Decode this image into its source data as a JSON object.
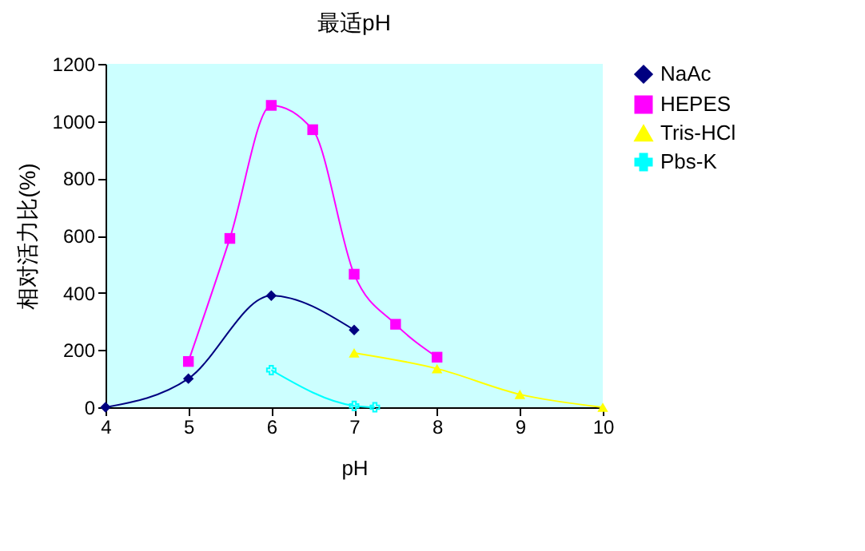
{
  "chart_data": {
    "type": "line",
    "title": "最适pH",
    "xlabel": "pH",
    "ylabel": "相对活力比(%)",
    "xlim": [
      4,
      10
    ],
    "xticks": [
      4,
      5,
      6,
      7,
      8,
      9,
      10
    ],
    "ylim": [
      0,
      1200
    ],
    "yticks": [
      0,
      200,
      400,
      600,
      800,
      1000,
      1200
    ],
    "grid": false,
    "legend": "right",
    "series": [
      {
        "name": "NaAc",
        "color": "#000080",
        "marker": "diamond",
        "x": [
          4,
          5,
          6,
          7
        ],
        "values": [
          0,
          100,
          390,
          270
        ]
      },
      {
        "name": "HEPES",
        "color": "#ff00ff",
        "marker": "square",
        "x": [
          5,
          5.5,
          6,
          6.5,
          7,
          7.5,
          8
        ],
        "values": [
          160,
          590,
          1055,
          970,
          465,
          290,
          175
        ]
      },
      {
        "name": "Tris-HCl",
        "color": "#ffff00",
        "marker": "triangle",
        "x": [
          7,
          8,
          9,
          10
        ],
        "values": [
          190,
          135,
          45,
          0
        ]
      },
      {
        "name": "Pbs-K",
        "color": "#00ffff",
        "marker": "cross",
        "x": [
          6,
          7,
          7.25
        ],
        "values": [
          130,
          5,
          0
        ]
      }
    ]
  }
}
